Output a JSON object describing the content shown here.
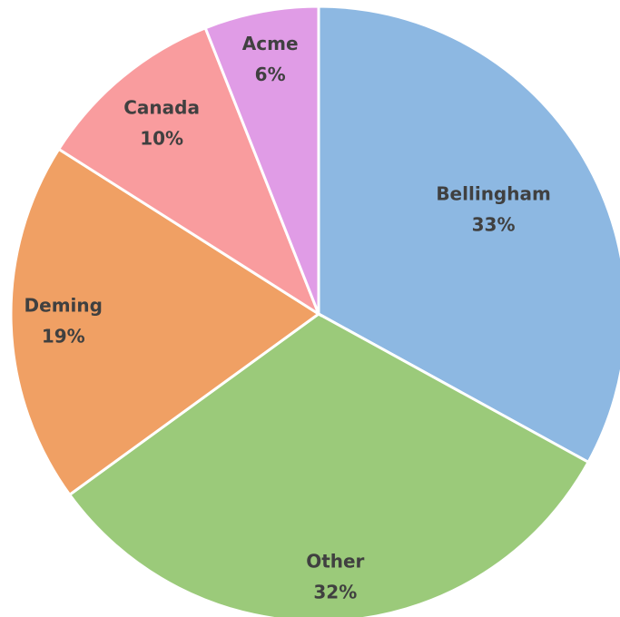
{
  "chart_data": {
    "type": "pie",
    "categories": [
      "Bellingham",
      "Other",
      "Deming",
      "Canada",
      "Acme"
    ],
    "values": [
      33,
      32,
      19,
      10,
      6
    ],
    "value_labels": [
      "33%",
      "32%",
      "19%",
      "10%",
      "6%"
    ],
    "colors": [
      "#8db8e2",
      "#9bca7a",
      "#f0a064",
      "#f99c9e",
      "#e09ce6"
    ]
  }
}
